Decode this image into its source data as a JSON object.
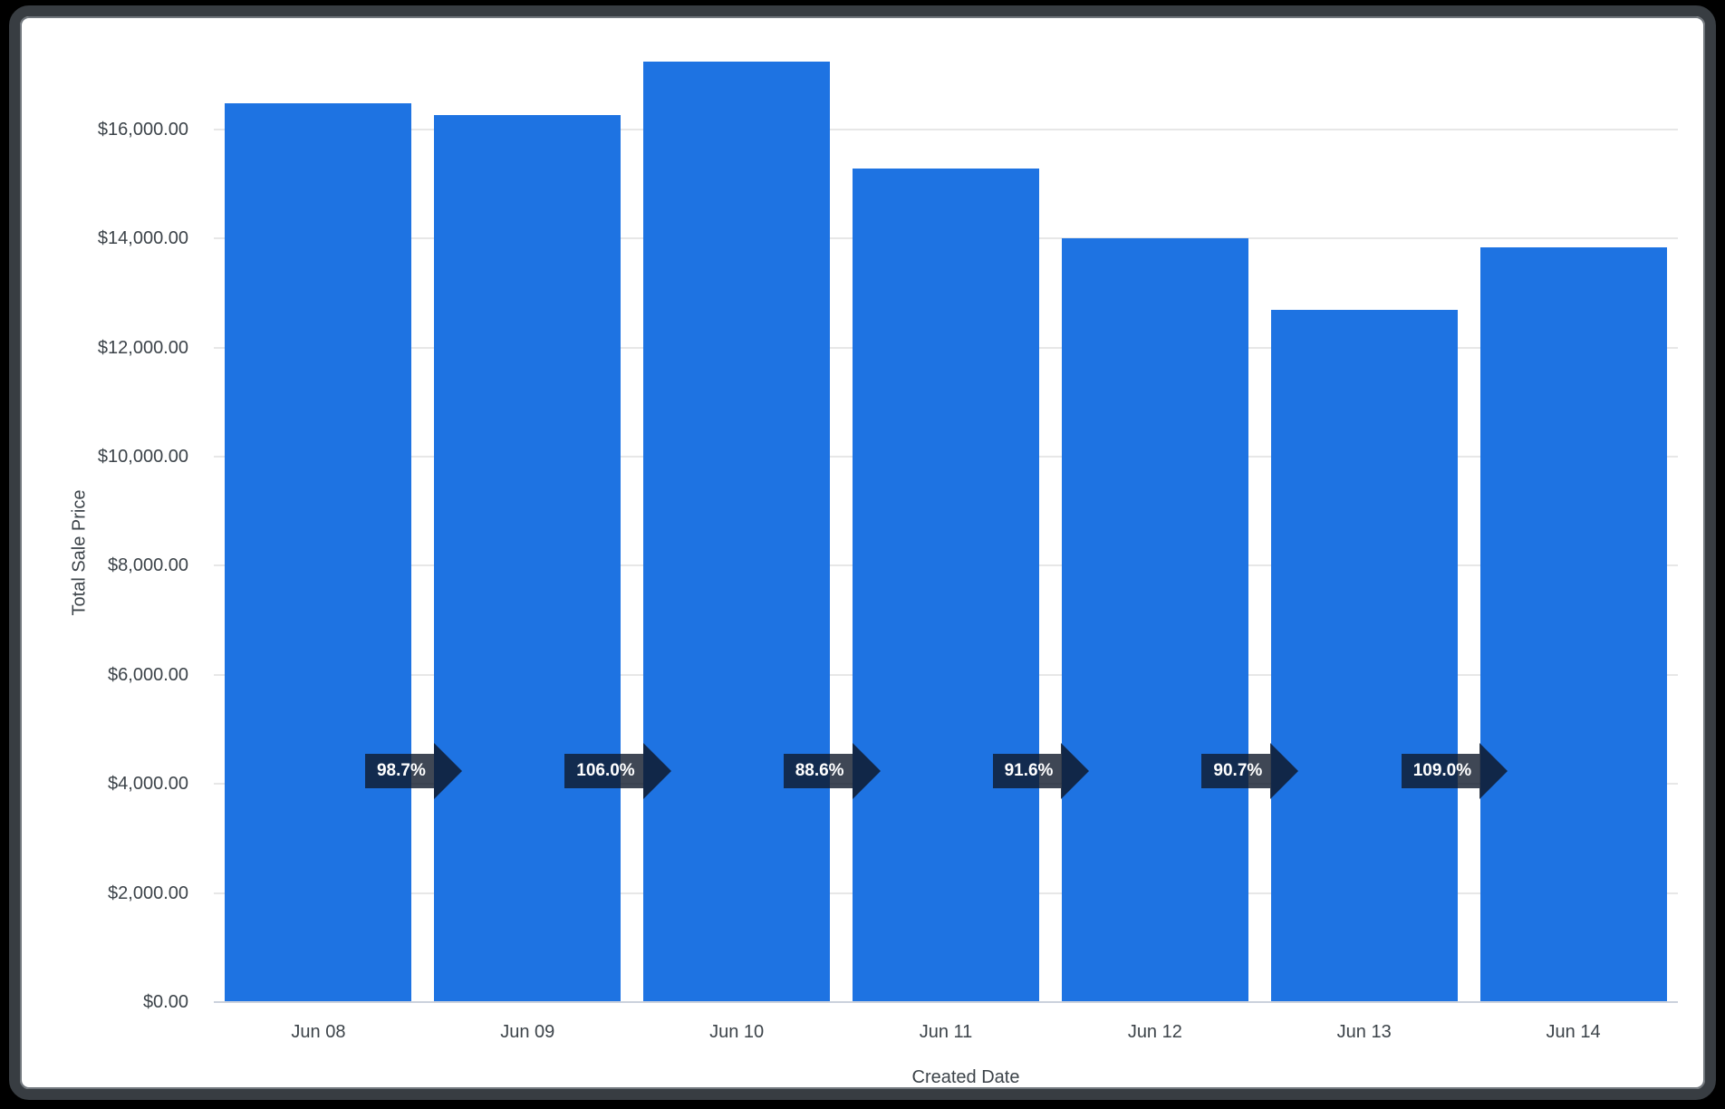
{
  "frame": {
    "background": "#000000",
    "border_color": "#383d42",
    "inner_edge_color": "#70767c",
    "card_background": "#ffffff"
  },
  "chart_data": {
    "type": "bar",
    "title": "",
    "xlabel": "Created Date",
    "ylabel": "Total Sale Price",
    "categories": [
      "Jun 08",
      "Jun 09",
      "Jun 10",
      "Jun 11",
      "Jun 12",
      "Jun 13",
      "Jun 14"
    ],
    "series": [
      {
        "name": "Total Sale Price",
        "values": [
          16480,
          16260,
          17250,
          15290,
          14000,
          12690,
          13830
        ]
      }
    ],
    "pct_change_badges": [
      "98.7%",
      "106.0%",
      "88.6%",
      "91.6%",
      "90.7%",
      "109.0%"
    ],
    "y_ticks": [
      {
        "label": "$0.00",
        "value": 0
      },
      {
        "label": "$2,000.00",
        "value": 2000
      },
      {
        "label": "$4,000.00",
        "value": 4000
      },
      {
        "label": "$6,000.00",
        "value": 6000
      },
      {
        "label": "$8,000.00",
        "value": 8000
      },
      {
        "label": "$10,000.00",
        "value": 10000
      },
      {
        "label": "$12,000.00",
        "value": 12000
      },
      {
        "label": "$14,000.00",
        "value": 14000
      },
      {
        "label": "$16,000.00",
        "value": 16000
      }
    ],
    "ylim": [
      0,
      17700
    ],
    "grid": "horizontal",
    "legend": "none",
    "bar_color": "#1e73e2",
    "badge_color": "rgba(15,25,42,0.8)",
    "badge_text_color": "#ffffff",
    "grid_color": "#e7e7e7",
    "axis_line_color": "#cbd1dc",
    "text_color": "#3c4349"
  }
}
